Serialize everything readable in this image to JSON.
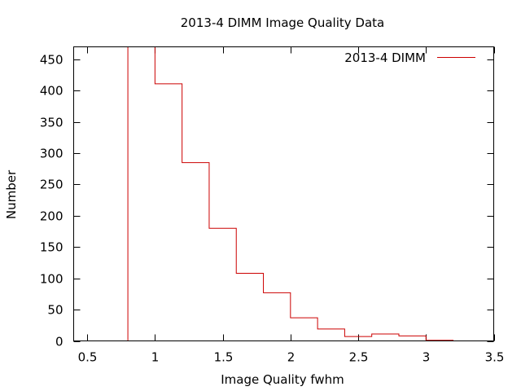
{
  "chart_data": {
    "type": "histogram-step",
    "title": "2013-4 DIMM Image Quality Data",
    "xlabel": "Image Quality fwhm",
    "ylabel": "Number",
    "xlim": [
      0.4,
      3.5
    ],
    "ylim": [
      0,
      470
    ],
    "x_ticks": [
      {
        "value": 0.5,
        "label": "0.5"
      },
      {
        "value": 1,
        "label": "1"
      },
      {
        "value": 1.5,
        "label": "1.5"
      },
      {
        "value": 2,
        "label": "2"
      },
      {
        "value": 2.5,
        "label": "2.5"
      },
      {
        "value": 3,
        "label": "3"
      },
      {
        "value": 3.5,
        "label": "3.5"
      }
    ],
    "y_ticks": [
      {
        "value": 0,
        "label": "0"
      },
      {
        "value": 50,
        "label": "50"
      },
      {
        "value": 100,
        "label": "100"
      },
      {
        "value": 150,
        "label": "150"
      },
      {
        "value": 200,
        "label": "200"
      },
      {
        "value": 250,
        "label": "250"
      },
      {
        "value": 300,
        "label": "300"
      },
      {
        "value": 350,
        "label": "350"
      },
      {
        "value": 400,
        "label": "400"
      },
      {
        "value": 450,
        "label": "450"
      }
    ],
    "legend": {
      "label": "2013-4 DIMM",
      "position": "top-right"
    },
    "color": "#cc0000",
    "series": [
      {
        "name": "2013-4 DIMM",
        "bins": [
          {
            "x0": 0.8,
            "x1": 1.0,
            "value": 470
          },
          {
            "x0": 1.0,
            "x1": 1.2,
            "value": 411
          },
          {
            "x0": 1.2,
            "x1": 1.4,
            "value": 285
          },
          {
            "x0": 1.4,
            "x1": 1.6,
            "value": 180
          },
          {
            "x0": 1.6,
            "x1": 1.8,
            "value": 108
          },
          {
            "x0": 1.8,
            "x1": 2.0,
            "value": 77
          },
          {
            "x0": 2.0,
            "x1": 2.2,
            "value": 37
          },
          {
            "x0": 2.2,
            "x1": 2.4,
            "value": 19
          },
          {
            "x0": 2.4,
            "x1": 2.6,
            "value": 7
          },
          {
            "x0": 2.6,
            "x1": 2.8,
            "value": 11
          },
          {
            "x0": 2.8,
            "x1": 3.0,
            "value": 8
          },
          {
            "x0": 3.0,
            "x1": 3.2,
            "value": 1
          }
        ]
      }
    ]
  }
}
